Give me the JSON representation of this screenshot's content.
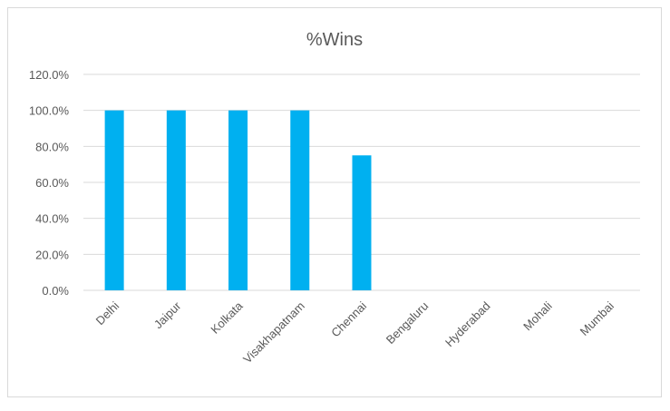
{
  "chart_data": {
    "type": "bar",
    "title": "%Wins",
    "categories": [
      "Delhi",
      "Jaipur",
      "Kolkata",
      "Visakhapatnam",
      "Chennai",
      "Bengaluru",
      "Hyderabad",
      "Mohali",
      "Mumbai"
    ],
    "values": [
      100.0,
      100.0,
      100.0,
      100.0,
      75.0,
      0.0,
      0.0,
      0.0,
      0.0
    ],
    "ylim": [
      0,
      120
    ],
    "yticks": [
      "0.0%",
      "20.0%",
      "40.0%",
      "60.0%",
      "80.0%",
      "100.0%",
      "120.0%"
    ],
    "ytick_values": [
      0,
      20,
      40,
      60,
      80,
      100,
      120
    ],
    "xlabel": "",
    "ylabel": "",
    "grid": true,
    "legend": "none",
    "bar_color": "#00b0f0"
  }
}
